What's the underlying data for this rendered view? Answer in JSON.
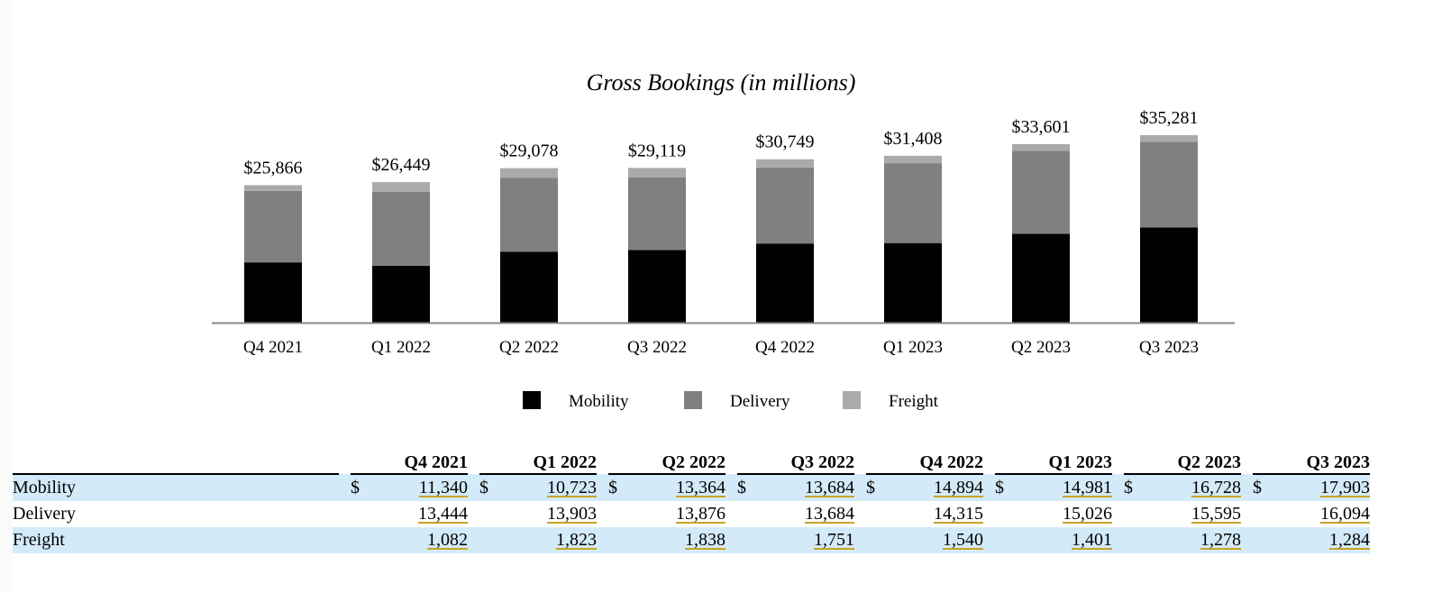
{
  "chart_data": {
    "type": "bar",
    "stacked": true,
    "title": "Gross Bookings (in millions)",
    "xlabel": "",
    "ylabel": "",
    "grid": false,
    "legend_position": "bottom-center",
    "categories": [
      "Q4 2021",
      "Q1 2022",
      "Q2 2022",
      "Q3 2022",
      "Q4 2022",
      "Q1 2023",
      "Q2 2023",
      "Q3 2023"
    ],
    "series": [
      {
        "name": "Mobility",
        "color": "#000000",
        "values": [
          11340,
          10723,
          13364,
          13684,
          14894,
          14981,
          16728,
          17903
        ]
      },
      {
        "name": "Delivery",
        "color": "#808080",
        "values": [
          13444,
          13903,
          13876,
          13684,
          14315,
          15026,
          15595,
          16094
        ]
      },
      {
        "name": "Freight",
        "color": "#aaaaaa",
        "values": [
          1082,
          1823,
          1838,
          1751,
          1540,
          1401,
          1278,
          1284
        ]
      }
    ],
    "totals": [
      25866,
      26449,
      29078,
      29119,
      30749,
      31408,
      33601,
      35281
    ],
    "total_labels": [
      "$25,866",
      "$26,449",
      "$29,078",
      "$29,119",
      "$30,749",
      "$31,408",
      "$33,601",
      "$35,281"
    ],
    "ylim": [
      0,
      35281
    ]
  },
  "table": {
    "columns": [
      "Q4 2021",
      "Q1 2022",
      "Q2 2022",
      "Q3 2022",
      "Q4 2022",
      "Q1 2023",
      "Q2 2023",
      "Q3 2023"
    ],
    "currency_symbol": "$",
    "rows": [
      {
        "label": "Mobility",
        "show_currency": true,
        "shaded": true,
        "values": [
          "11,340",
          "10,723",
          "13,364",
          "13,684",
          "14,894",
          "14,981",
          "16,728",
          "17,903"
        ]
      },
      {
        "label": "Delivery",
        "show_currency": false,
        "shaded": false,
        "values": [
          "13,444",
          "13,903",
          "13,876",
          "13,684",
          "14,315",
          "15,026",
          "15,595",
          "16,094"
        ]
      },
      {
        "label": "Freight",
        "show_currency": false,
        "shaded": true,
        "values": [
          "1,082",
          "1,823",
          "1,838",
          "1,751",
          "1,540",
          "1,401",
          "1,278",
          "1,284"
        ]
      }
    ]
  }
}
